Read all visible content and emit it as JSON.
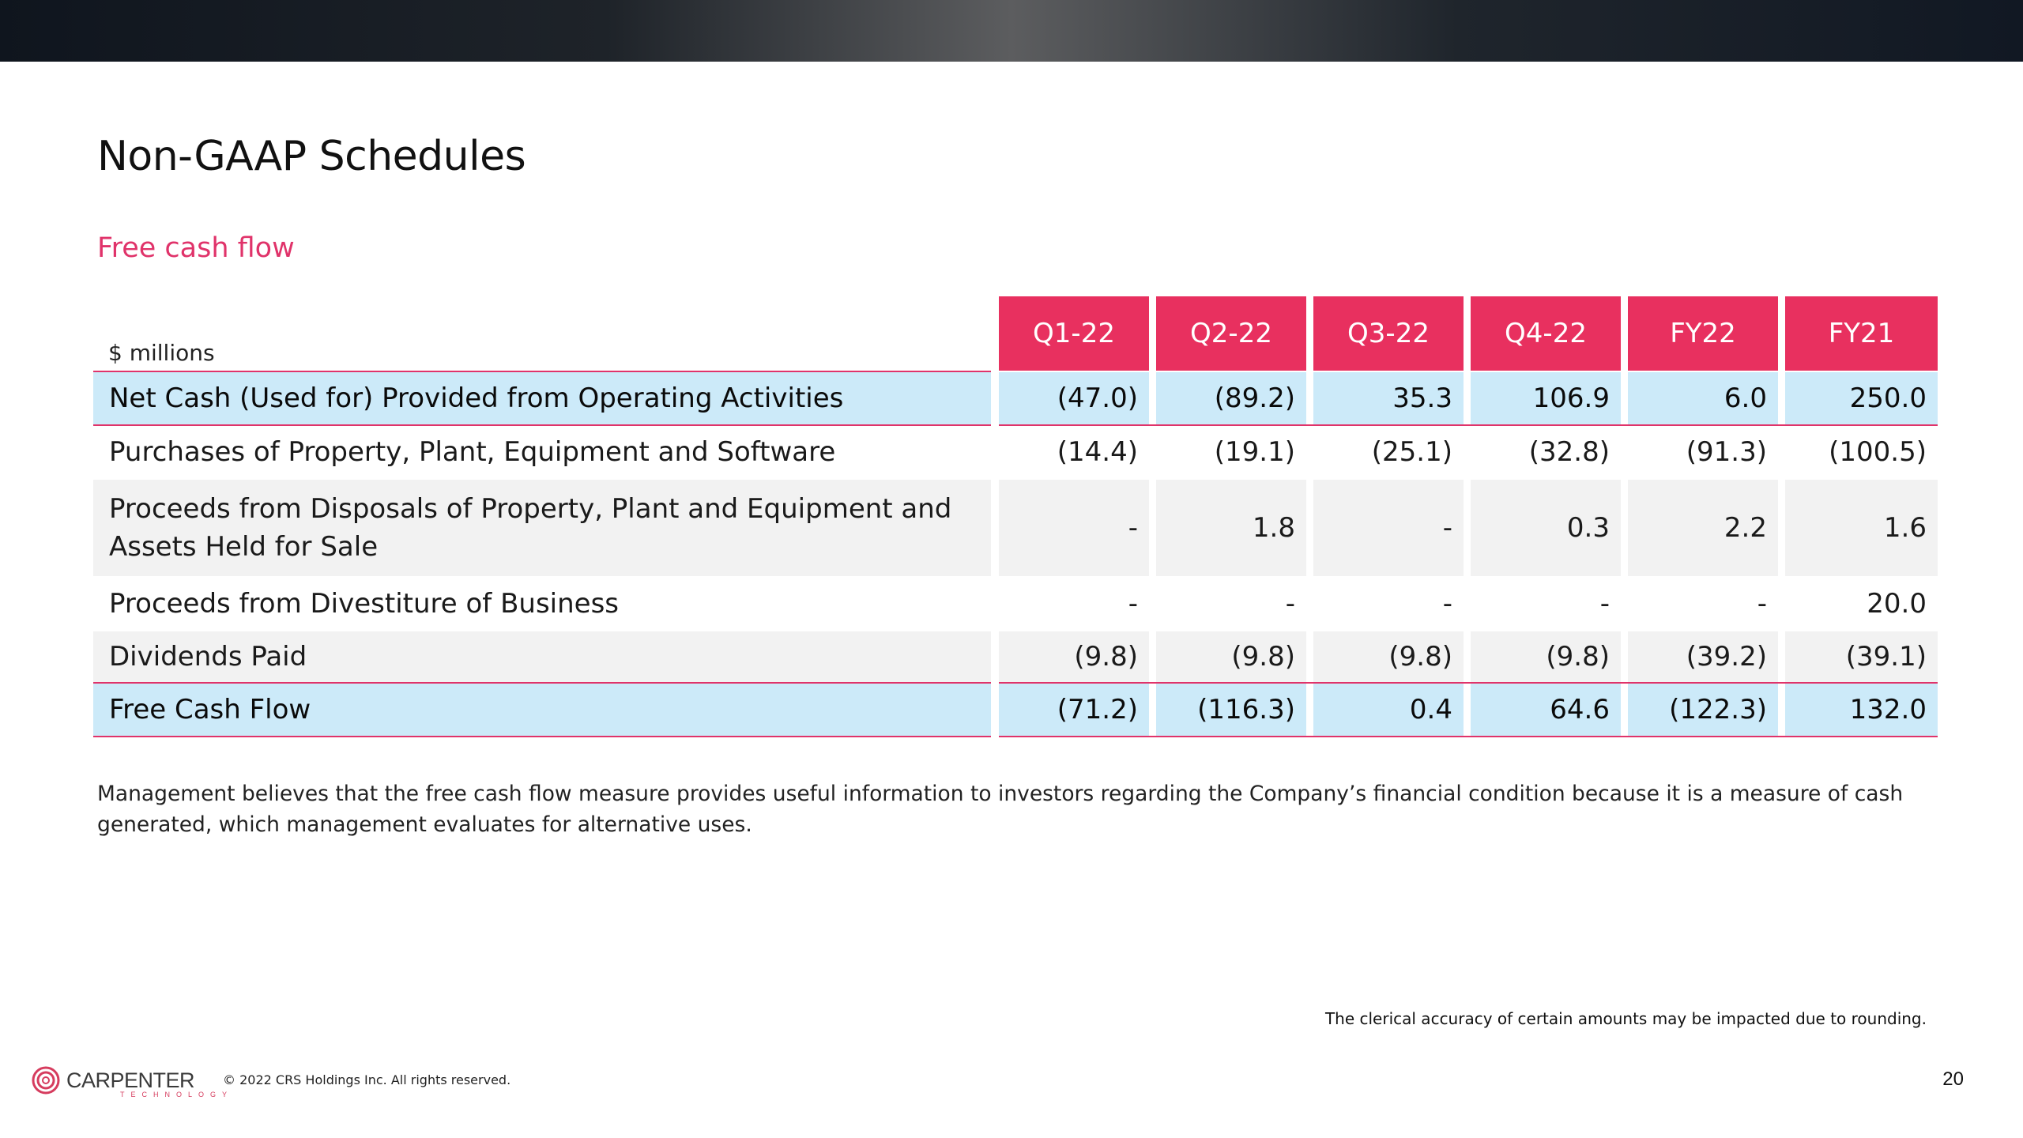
{
  "slide": {
    "title": "Non-GAAP Schedules",
    "subtitle": "Free cash flow",
    "units_label": "$ millions",
    "page_number": "20"
  },
  "table": {
    "columns": [
      "Q1-22",
      "Q2-22",
      "Q3-22",
      "Q4-22",
      "FY22",
      "FY21"
    ],
    "rows": [
      {
        "label": "Net Cash (Used for) Provided from Operating Activities",
        "values": [
          "(47.0)",
          "(89.2)",
          "35.3",
          "106.9",
          "6.0",
          "250.0"
        ]
      },
      {
        "label": "Purchases of Property, Plant, Equipment and Software",
        "values": [
          "(14.4)",
          "(19.1)",
          "(25.1)",
          "(32.8)",
          "(91.3)",
          "(100.5)"
        ]
      },
      {
        "label": "Proceeds from Disposals of Property, Plant and Equipment and Assets Held for Sale",
        "values": [
          "-",
          "1.8",
          "-",
          "0.3",
          "2.2",
          "1.6"
        ]
      },
      {
        "label": "Proceeds from Divestiture of Business",
        "values": [
          "-",
          "-",
          "-",
          "-",
          "-",
          "20.0"
        ]
      },
      {
        "label": "Dividends Paid",
        "values": [
          "(9.8)",
          "(9.8)",
          "(9.8)",
          "(9.8)",
          "(39.2)",
          "(39.1)"
        ]
      },
      {
        "label": "Free Cash Flow",
        "values": [
          "(71.2)",
          "(116.3)",
          "0.4",
          "64.6",
          "(122.3)",
          "132.0"
        ]
      }
    ]
  },
  "note": "Management believes that the free cash flow measure provides useful information to investors regarding the Company’s financial condition because it is a measure of cash generated, which management evaluates for alternative uses.",
  "footer": {
    "rounding_note": "The clerical accuracy of certain amounts may be impacted due to rounding.",
    "logo_name": "CARPENTER",
    "logo_sub": "TECHNOLOGY",
    "copyright": "© 2022 CRS Holdings Inc. All rights reserved."
  },
  "colors": {
    "accent": "#e8305f",
    "highlight_row": "#cceaf9",
    "alt_row": "#f2f2f2"
  }
}
